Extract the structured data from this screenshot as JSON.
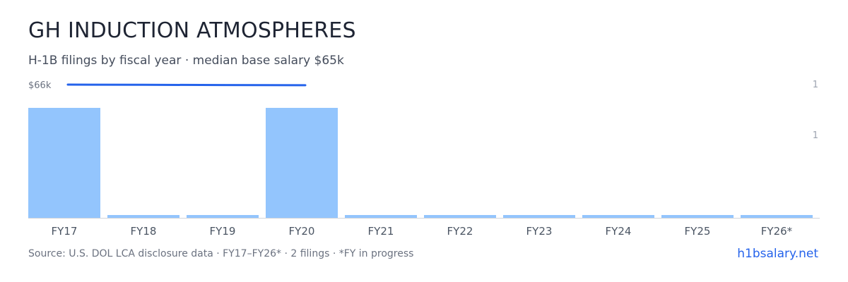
{
  "title": "GH INDUCTION ATMOSPHERES",
  "subtitle": "H-1B filings by fiscal year · median base salary $65k",
  "footer": {
    "source": "Source: U.S. DOL LCA disclosure data · FY17–FY26* · 2 filings · *FY in progress",
    "brand": "h1bsalary.net"
  },
  "colors": {
    "bar": "#93c5fd",
    "salary_line": "#2563eb",
    "baseline": "#d1d5db"
  },
  "chart_data": {
    "type": "bar",
    "categories": [
      "FY17",
      "FY18",
      "FY19",
      "FY20",
      "FY21",
      "FY22",
      "FY23",
      "FY24",
      "FY25",
      "FY26*"
    ],
    "series": [
      {
        "values": [
          1,
          0,
          0,
          1,
          0,
          0,
          0,
          0,
          0,
          0
        ]
      }
    ],
    "salary_line": {
      "categories": [
        "FY17",
        "FY18",
        "FY19",
        "FY20"
      ],
      "values": [
        66,
        65.9,
        65.8,
        65.7
      ],
      "label": "$66k"
    },
    "right_axis_ticks": [
      "1",
      "1"
    ],
    "ylim": [
      0,
      1
    ]
  }
}
